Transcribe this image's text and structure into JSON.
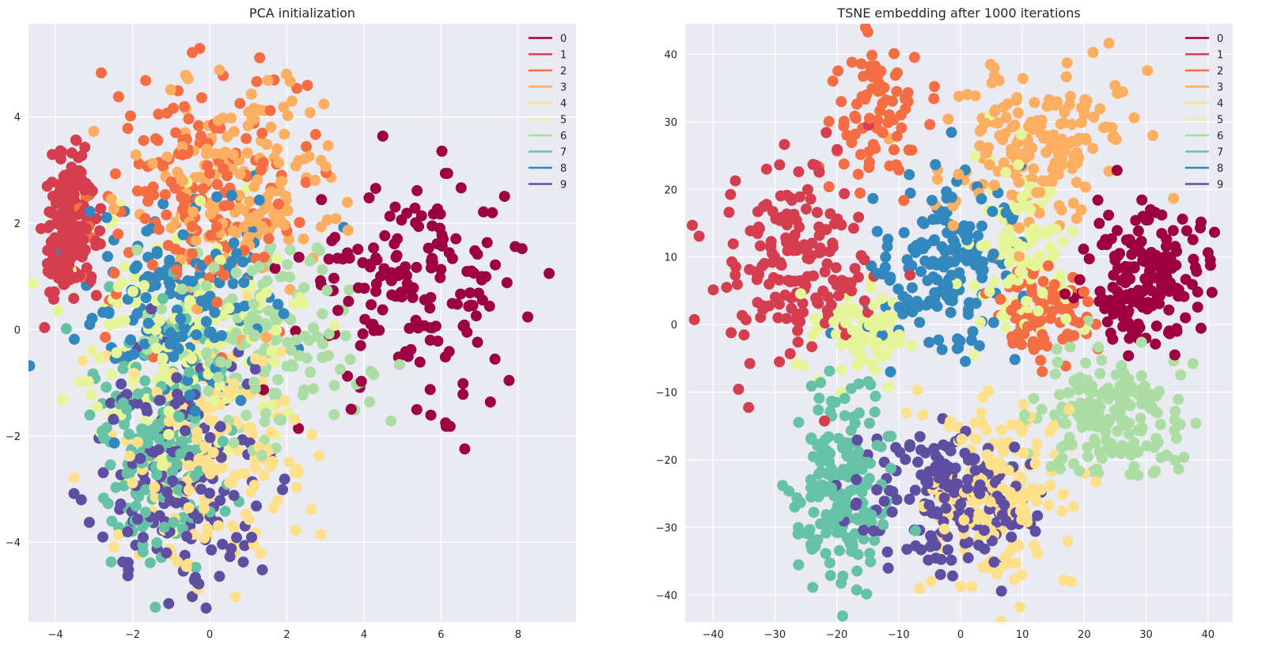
{
  "chart_data": [
    {
      "type": "scatter",
      "title": "PCA initialization",
      "xlabel": "",
      "ylabel": "",
      "xlim": [
        -4.7,
        9.5
      ],
      "ylim": [
        -5.5,
        5.75
      ],
      "xticks": [
        -4,
        -2,
        0,
        2,
        4,
        6,
        8
      ],
      "yticks": [
        -4,
        -2,
        0,
        2,
        4
      ],
      "grid": true,
      "legend_position": "top-right",
      "legend": [
        "0",
        "1",
        "2",
        "3",
        "4",
        "5",
        "6",
        "7",
        "8",
        "9"
      ],
      "marker_size_data_note": "digit classes",
      "clusters": [
        {
          "label": "0",
          "cx": 5.3,
          "cy": 0.9,
          "sx": 1.5,
          "sy": 1.0,
          "n": 170
        },
        {
          "label": "1",
          "cx": -3.6,
          "cy": 1.9,
          "sx": 0.35,
          "sy": 0.65,
          "n": 180
        },
        {
          "label": "2",
          "cx": -0.3,
          "cy": 2.6,
          "sx": 1.3,
          "sy": 1.2,
          "n": 170
        },
        {
          "label": "3",
          "cx": 0.8,
          "cy": 2.8,
          "sx": 1.3,
          "sy": 1.0,
          "n": 175
        },
        {
          "label": "4",
          "cx": 0.3,
          "cy": -2.3,
          "sx": 1.2,
          "sy": 1.1,
          "n": 170
        },
        {
          "label": "5",
          "cx": -0.5,
          "cy": -0.2,
          "sx": 1.5,
          "sy": 1.2,
          "n": 180
        },
        {
          "label": "6",
          "cx": 1.3,
          "cy": -0.2,
          "sx": 1.4,
          "sy": 1.0,
          "n": 170
        },
        {
          "label": "7",
          "cx": -1.3,
          "cy": -2.0,
          "sx": 0.9,
          "sy": 1.2,
          "n": 170
        },
        {
          "label": "8",
          "cx": -0.6,
          "cy": 0.5,
          "sx": 1.3,
          "sy": 1.0,
          "n": 170
        },
        {
          "label": "9",
          "cx": -0.8,
          "cy": -2.8,
          "sx": 1.1,
          "sy": 1.1,
          "n": 170
        }
      ]
    },
    {
      "type": "scatter",
      "title": "TSNE embedding after 1000 iterations",
      "xlabel": "",
      "ylabel": "",
      "xlim": [
        -44.5,
        44
      ],
      "ylim": [
        -44,
        44.5
      ],
      "xticks": [
        -40,
        -30,
        -20,
        -10,
        0,
        10,
        20,
        30,
        40
      ],
      "yticks": [
        -40,
        -30,
        -20,
        -10,
        0,
        10,
        20,
        30,
        40
      ],
      "grid": true,
      "legend_position": "top-right",
      "legend": [
        "0",
        "1",
        "2",
        "3",
        "4",
        "5",
        "6",
        "7",
        "8",
        "9"
      ],
      "clusters": [
        {
          "label": "0",
          "cx": 30,
          "cy": 7,
          "sx": 4.5,
          "sy": 5,
          "n": 180
        },
        {
          "label": "1",
          "cx": -27,
          "cy": 10,
          "sx": 6,
          "sy": 8,
          "n": 180
        },
        {
          "label": "2",
          "cx": -13,
          "cy": 31,
          "sx": 4,
          "sy": 5,
          "n": 80
        },
        {
          "label": "2",
          "cx": 14,
          "cy": 2,
          "sx": 4,
          "sy": 4,
          "n": 90
        },
        {
          "label": "3",
          "cx": 12,
          "cy": 27,
          "sx": 7,
          "sy": 6,
          "n": 180
        },
        {
          "label": "4",
          "cx": 6,
          "cy": -26,
          "sx": 6,
          "sy": 7,
          "n": 180
        },
        {
          "label": "5",
          "cx": 10,
          "cy": 11,
          "sx": 4,
          "sy": 7,
          "n": 110
        },
        {
          "label": "5",
          "cx": -16,
          "cy": -2,
          "sx": 4,
          "sy": 4,
          "n": 70
        },
        {
          "label": "6",
          "cx": 24,
          "cy": -14,
          "sx": 6,
          "sy": 5,
          "n": 180
        },
        {
          "label": "7",
          "cx": -19,
          "cy": -24,
          "sx": 4,
          "sy": 7,
          "n": 180
        },
        {
          "label": "8",
          "cx": -3,
          "cy": 8,
          "sx": 6,
          "sy": 6,
          "n": 180
        },
        {
          "label": "9",
          "cx": -2,
          "cy": -25,
          "sx": 7,
          "sy": 5,
          "n": 180
        }
      ]
    }
  ],
  "palette": [
    "#9e0142",
    "#d53e4f",
    "#f46d43",
    "#fdae61",
    "#fee08b",
    "#e6f598",
    "#abdda4",
    "#66c2a5",
    "#3288bd",
    "#5e4fa2"
  ],
  "colors": {
    "axes_bg": "#eaeaf2",
    "grid": "#ffffff",
    "text": "#262626"
  }
}
